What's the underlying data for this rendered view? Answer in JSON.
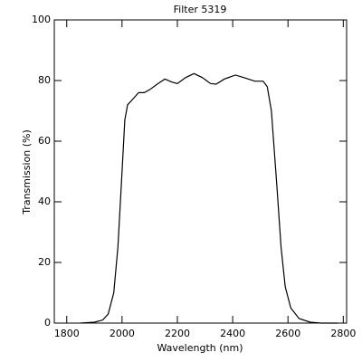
{
  "chart_data": {
    "type": "line",
    "title": "Filter 5319",
    "x_label": "Wavelength (nm)",
    "y_label": "Transmission (%)",
    "x": [
      1850,
      1900,
      1930,
      1950,
      1970,
      1985,
      2000,
      2010,
      2020,
      2040,
      2060,
      2080,
      2100,
      2130,
      2155,
      2180,
      2200,
      2230,
      2260,
      2290,
      2320,
      2340,
      2370,
      2410,
      2440,
      2480,
      2510,
      2525,
      2540,
      2560,
      2575,
      2590,
      2610,
      2640,
      2680,
      2720,
      2780
    ],
    "series": [
      {
        "name": "Transmission",
        "color": "#000000",
        "values": [
          0,
          0.3,
          1,
          3,
          10,
          25,
          50,
          67,
          72,
          74,
          76,
          76,
          77,
          79,
          80.5,
          79.5,
          79,
          81,
          82.3,
          81,
          79,
          78.8,
          80.5,
          81.8,
          81,
          79.8,
          79.8,
          78,
          70,
          45,
          25,
          12,
          5,
          1.5,
          0.3,
          0,
          0
        ]
      }
    ],
    "xlim": [
      1755,
      2812
    ],
    "xticks": [
      1800,
      2000,
      2200,
      2400,
      2600,
      2800
    ],
    "ylim": [
      0,
      100
    ],
    "yticks": [
      0,
      20,
      40,
      60,
      80,
      100
    ]
  }
}
